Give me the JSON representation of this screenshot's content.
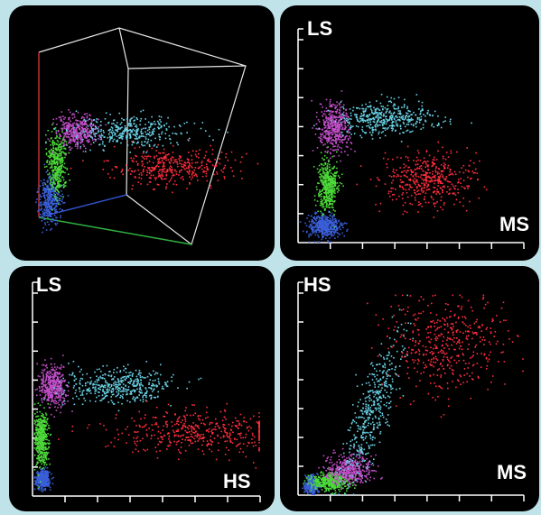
{
  "chart_data": [
    {
      "type": "scatter",
      "view": "3d",
      "title": "",
      "xlabel": "",
      "ylabel": "",
      "zlabel": "",
      "grid": false,
      "series": [
        {
          "name": "",
          "color": "#3a5fd9",
          "points": 260
        },
        {
          "name": "",
          "color": "#4ddb3a",
          "points": 320
        },
        {
          "name": "",
          "color": "#c04ec8",
          "points": 220
        },
        {
          "name": "",
          "color": "#69d2e6",
          "points": 1400
        },
        {
          "name": "",
          "color": "#ff2e3d",
          "points": 420
        }
      ]
    },
    {
      "type": "scatter",
      "title": "",
      "xlabel": "MS",
      "ylabel": "LS",
      "xticks": 7,
      "yticks": 7,
      "series": [
        {
          "name": "",
          "color": "#3a5fd9",
          "center": [
            0.8,
            0.6
          ],
          "spread": [
            0.5,
            0.4
          ]
        },
        {
          "name": "",
          "color": "#4ddb3a",
          "center": [
            0.9,
            2.0
          ],
          "spread": [
            0.3,
            0.9
          ]
        },
        {
          "name": "",
          "color": "#c04ec8",
          "center": [
            1.1,
            4.0
          ],
          "spread": [
            0.5,
            0.8
          ]
        },
        {
          "name": "",
          "color": "#69d2e6",
          "center": [
            2.7,
            4.3
          ],
          "spread": [
            1.5,
            0.5
          ]
        },
        {
          "name": "",
          "color": "#ff2e3d",
          "center": [
            4.0,
            2.2
          ],
          "spread": [
            1.5,
            0.9
          ]
        }
      ]
    },
    {
      "type": "scatter",
      "title": "",
      "xlabel": "HS",
      "ylabel": "LS",
      "xticks": 7,
      "yticks": 7,
      "series": [
        {
          "name": "",
          "color": "#3a5fd9",
          "center": [
            0.3,
            0.6
          ],
          "spread": [
            0.2,
            0.3
          ]
        },
        {
          "name": "",
          "color": "#4ddb3a",
          "center": [
            0.25,
            2.0
          ],
          "spread": [
            0.2,
            0.9
          ]
        },
        {
          "name": "",
          "color": "#c04ec8",
          "center": [
            0.6,
            3.8
          ],
          "spread": [
            0.4,
            0.7
          ]
        },
        {
          "name": "",
          "color": "#69d2e6",
          "center": [
            2.6,
            3.8
          ],
          "spread": [
            1.6,
            0.6
          ]
        },
        {
          "name": "",
          "color": "#ff2e3d",
          "center": [
            5.0,
            2.2
          ],
          "spread": [
            2.8,
            0.8
          ]
        }
      ]
    },
    {
      "type": "scatter",
      "title": "",
      "xlabel": "MS",
      "ylabel": "HS",
      "xticks": 7,
      "yticks": 7,
      "series": [
        {
          "name": "",
          "color": "#3a5fd9",
          "center": [
            0.4,
            0.4
          ],
          "spread": [
            0.2,
            0.3
          ]
        },
        {
          "name": "",
          "color": "#4ddb3a",
          "center": [
            1.0,
            0.5
          ],
          "spread": [
            0.6,
            0.3
          ]
        },
        {
          "name": "",
          "color": "#c04ec8",
          "center": [
            1.6,
            0.9
          ],
          "spread": [
            0.7,
            0.5
          ]
        },
        {
          "name": "",
          "color": "#69d2e6",
          "center": [
            2.3,
            3.0
          ],
          "spread": [
            1.2,
            2.6
          ],
          "tilt": 0.65
        },
        {
          "name": "",
          "color": "#ff2e3d",
          "center": [
            4.5,
            5.3
          ],
          "spread": [
            1.8,
            1.6
          ]
        }
      ]
    }
  ]
}
